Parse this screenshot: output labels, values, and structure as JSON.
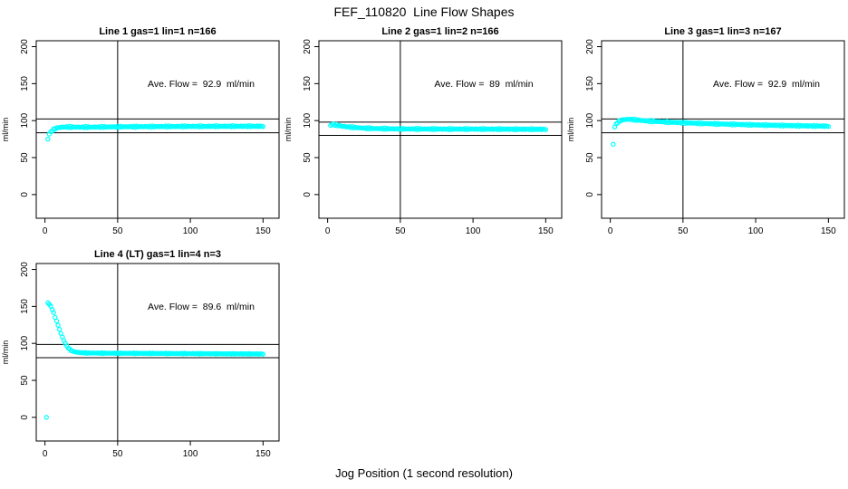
{
  "page": {
    "title": "FEF_110820  Line Flow Shapes",
    "xlabel": "Jog Position (1 second resolution)"
  },
  "chart_data": [
    {
      "type": "scatter",
      "title": "Line 1 gas=1 lin=1 n=166",
      "annotation": "Ave. Flow =  92.9  ml/min",
      "ave_flow_ml_min": 92.9,
      "ylabel": "ml/min",
      "x_ticks": [
        0,
        50,
        100,
        150
      ],
      "y_ticks": [
        0,
        50,
        100,
        150,
        200
      ],
      "xlim": [
        -6,
        161
      ],
      "ylim": [
        -32,
        208
      ],
      "grid": false,
      "vline_x": 50,
      "hlines": [
        102.2,
        83.6
      ],
      "point_color": "#00FFFF",
      "jitter": 1.0,
      "x_step": 1,
      "outliers": [
        [
          2,
          75
        ]
      ],
      "curve": [
        [
          3,
          82
        ],
        [
          4,
          84.5
        ],
        [
          5,
          86.5
        ],
        [
          6,
          88
        ],
        [
          7,
          89
        ],
        [
          8,
          90
        ],
        [
          10,
          90.8
        ],
        [
          12,
          91.2
        ],
        [
          15,
          91.4
        ],
        [
          20,
          91.3
        ],
        [
          25,
          91.2
        ],
        [
          30,
          91.2
        ],
        [
          40,
          91.4
        ],
        [
          50,
          91.6
        ],
        [
          60,
          91.8
        ],
        [
          80,
          92
        ],
        [
          100,
          92.2
        ],
        [
          120,
          92.3
        ],
        [
          150,
          92.4
        ]
      ]
    },
    {
      "type": "scatter",
      "title": "Line 2 gas=1 lin=2 n=166",
      "annotation": "Ave. Flow =  89  ml/min",
      "ave_flow_ml_min": 89,
      "ylabel": "ml/min",
      "x_ticks": [
        0,
        50,
        100,
        150
      ],
      "y_ticks": [
        0,
        50,
        100,
        150,
        200
      ],
      "xlim": [
        -6,
        161
      ],
      "ylim": [
        -32,
        208
      ],
      "grid": false,
      "vline_x": 50,
      "hlines": [
        97.9,
        80.1
      ],
      "point_color": "#00FFFF",
      "jitter": 1.0,
      "x_step": 1,
      "outliers": [],
      "curve": [
        [
          2,
          93.5
        ],
        [
          3,
          95
        ],
        [
          4,
          94.8
        ],
        [
          6,
          94
        ],
        [
          8,
          93.2
        ],
        [
          10,
          92.5
        ],
        [
          14,
          91.5
        ],
        [
          18,
          90.8
        ],
        [
          22,
          90.2
        ],
        [
          28,
          89.6
        ],
        [
          35,
          89.2
        ],
        [
          45,
          88.9
        ],
        [
          60,
          88.7
        ],
        [
          80,
          88.6
        ],
        [
          100,
          88.6
        ],
        [
          120,
          88.5
        ],
        [
          150,
          88.3
        ]
      ]
    },
    {
      "type": "scatter",
      "title": "Line 3 gas=1 lin=3 n=167",
      "annotation": "Ave. Flow =  92.9  ml/min",
      "ave_flow_ml_min": 92.9,
      "ylabel": "ml/min",
      "x_ticks": [
        0,
        50,
        100,
        150
      ],
      "y_ticks": [
        0,
        50,
        100,
        150,
        200
      ],
      "xlim": [
        -6,
        161
      ],
      "ylim": [
        -32,
        208
      ],
      "grid": false,
      "vline_x": 50,
      "hlines": [
        102.2,
        83.6
      ],
      "point_color": "#00FFFF",
      "jitter": 1.0,
      "x_step": 1,
      "outliers": [
        [
          2,
          68
        ]
      ],
      "curve": [
        [
          3,
          91.5
        ],
        [
          4,
          95
        ],
        [
          5,
          97.5
        ],
        [
          6,
          99
        ],
        [
          7,
          100
        ],
        [
          8,
          100.8
        ],
        [
          10,
          101.5
        ],
        [
          13,
          101.8
        ],
        [
          16,
          101.3
        ],
        [
          20,
          100.5
        ],
        [
          25,
          99.6
        ],
        [
          30,
          99
        ],
        [
          40,
          98
        ],
        [
          50,
          97.2
        ],
        [
          60,
          96.4
        ],
        [
          75,
          95.5
        ],
        [
          90,
          94.7
        ],
        [
          105,
          94
        ],
        [
          120,
          93.4
        ],
        [
          135,
          92.9
        ],
        [
          150,
          92.5
        ]
      ]
    },
    {
      "type": "scatter",
      "title": "Line 4 (LT) gas=1 lin=4 n=3",
      "annotation": "Ave. Flow =  89.6  ml/min",
      "ave_flow_ml_min": 89.6,
      "ylabel": "ml/min",
      "x_ticks": [
        0,
        50,
        100,
        150
      ],
      "y_ticks": [
        0,
        50,
        100,
        150,
        200
      ],
      "xlim": [
        -6,
        161
      ],
      "ylim": [
        -32,
        208
      ],
      "grid": false,
      "vline_x": 50,
      "hlines": [
        98.6,
        80.6
      ],
      "point_color": "#00FFFF",
      "jitter": 0.6,
      "x_step": 1,
      "outliers": [
        [
          1,
          0
        ]
      ],
      "curve": [
        [
          2,
          155
        ],
        [
          3,
          153
        ],
        [
          4,
          150
        ],
        [
          5,
          146
        ],
        [
          6,
          141
        ],
        [
          7,
          135.5
        ],
        [
          8,
          130
        ],
        [
          9,
          124.5
        ],
        [
          10,
          119
        ],
        [
          11,
          113.5
        ],
        [
          12,
          108.5
        ],
        [
          13,
          104
        ],
        [
          14,
          100
        ],
        [
          15,
          96.5
        ],
        [
          16,
          94
        ],
        [
          17,
          92
        ],
        [
          18,
          90.5
        ],
        [
          19,
          89.5
        ],
        [
          20,
          88.8
        ],
        [
          22,
          88
        ],
        [
          25,
          87.4
        ],
        [
          30,
          87
        ],
        [
          40,
          86.8
        ],
        [
          50,
          86.7
        ],
        [
          60,
          86.6
        ],
        [
          80,
          86.4
        ],
        [
          100,
          86.2
        ],
        [
          120,
          86
        ],
        [
          150,
          85.7
        ]
      ]
    }
  ]
}
